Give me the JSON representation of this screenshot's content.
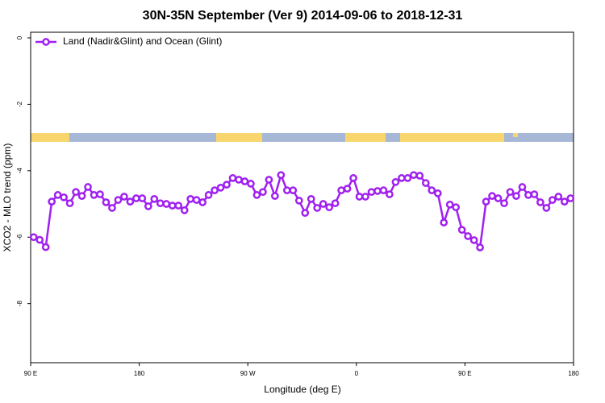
{
  "chart_data": {
    "type": "line",
    "title": "30N-35N September (Ver 9)   2014-09-06 to 2018-12-31",
    "xlabel": "Longitude (deg E)",
    "ylabel": "XCO2 - MLO trend (ppm)",
    "xlim": [
      90,
      540
    ],
    "xticks": [
      {
        "value": 90,
        "label": "90 E"
      },
      {
        "value": 180,
        "label": "180"
      },
      {
        "value": 270,
        "label": "90 W"
      },
      {
        "value": 360,
        "label": "0"
      },
      {
        "value": 450,
        "label": "90 E"
      },
      {
        "value": 540,
        "label": "180"
      }
    ],
    "ylim": [
      -9.78,
      0.17
    ],
    "yticks": [
      0,
      -2,
      -4,
      -6,
      -8
    ],
    "legend": "top-left",
    "x": [
      92.5,
      97.5,
      102.5,
      107.5,
      112.5,
      117.5,
      122.5,
      127.5,
      132.5,
      137.5,
      142.5,
      147.5,
      152.5,
      157.5,
      162.5,
      167.5,
      172.5,
      177.5,
      182.5,
      187.5,
      192.5,
      197.5,
      202.5,
      207.5,
      212.5,
      217.5,
      222.5,
      227.5,
      232.5,
      237.5,
      242.5,
      247.5,
      252.5,
      257.5,
      262.5,
      267.5,
      272.5,
      277.5,
      282.5,
      287.5,
      292.5,
      297.5,
      302.5,
      307.5,
      312.5,
      317.5,
      322.5,
      327.5,
      332.5,
      337.5,
      342.5,
      347.5,
      352.5,
      357.5,
      362.5,
      367.5,
      372.5,
      377.5,
      382.5,
      387.5,
      392.5,
      397.5,
      402.5,
      407.5,
      412.5,
      417.5,
      422.5,
      427.5,
      432.5,
      437.5,
      442.5,
      447.5,
      452.5,
      457.5,
      462.5,
      467.5,
      472.5,
      477.5,
      482.5,
      487.5,
      492.5,
      497.5,
      502.5,
      507.5,
      512.5,
      517.5,
      522.5,
      527.5,
      532.5,
      537.5
    ],
    "series": [
      {
        "name": "Land (Nadir&Glint) and Ocean (Glint)",
        "color": "#a020f0",
        "values": [
          -6.0,
          -6.08,
          -6.3,
          -4.93,
          -4.73,
          -4.8,
          -4.98,
          -4.64,
          -4.76,
          -4.49,
          -4.73,
          -4.71,
          -4.95,
          -5.12,
          -4.88,
          -4.78,
          -4.93,
          -4.83,
          -4.83,
          -5.07,
          -4.85,
          -4.98,
          -5.0,
          -5.05,
          -5.05,
          -5.19,
          -4.85,
          -4.88,
          -4.95,
          -4.73,
          -4.59,
          -4.51,
          -4.42,
          -4.22,
          -4.27,
          -4.32,
          -4.39,
          -4.73,
          -4.64,
          -4.27,
          -4.76,
          -4.13,
          -4.59,
          -4.59,
          -4.9,
          -5.27,
          -4.85,
          -5.12,
          -5.0,
          -5.1,
          -4.98,
          -4.59,
          -4.54,
          -4.22,
          -4.78,
          -4.78,
          -4.64,
          -4.61,
          -4.59,
          -4.71,
          -4.34,
          -4.22,
          -4.22,
          -4.13,
          -4.15,
          -4.37,
          -4.59,
          -4.68,
          -5.56,
          -5.02,
          -5.1,
          -5.78,
          -5.97,
          -6.09,
          -6.31,
          -4.93,
          -4.76,
          -4.83,
          -4.98,
          -4.64,
          -4.76,
          -4.49,
          -4.73,
          -4.71,
          -4.95,
          -5.12,
          -4.88,
          -4.78,
          -4.93,
          -4.83
        ]
      }
    ]
  }
}
